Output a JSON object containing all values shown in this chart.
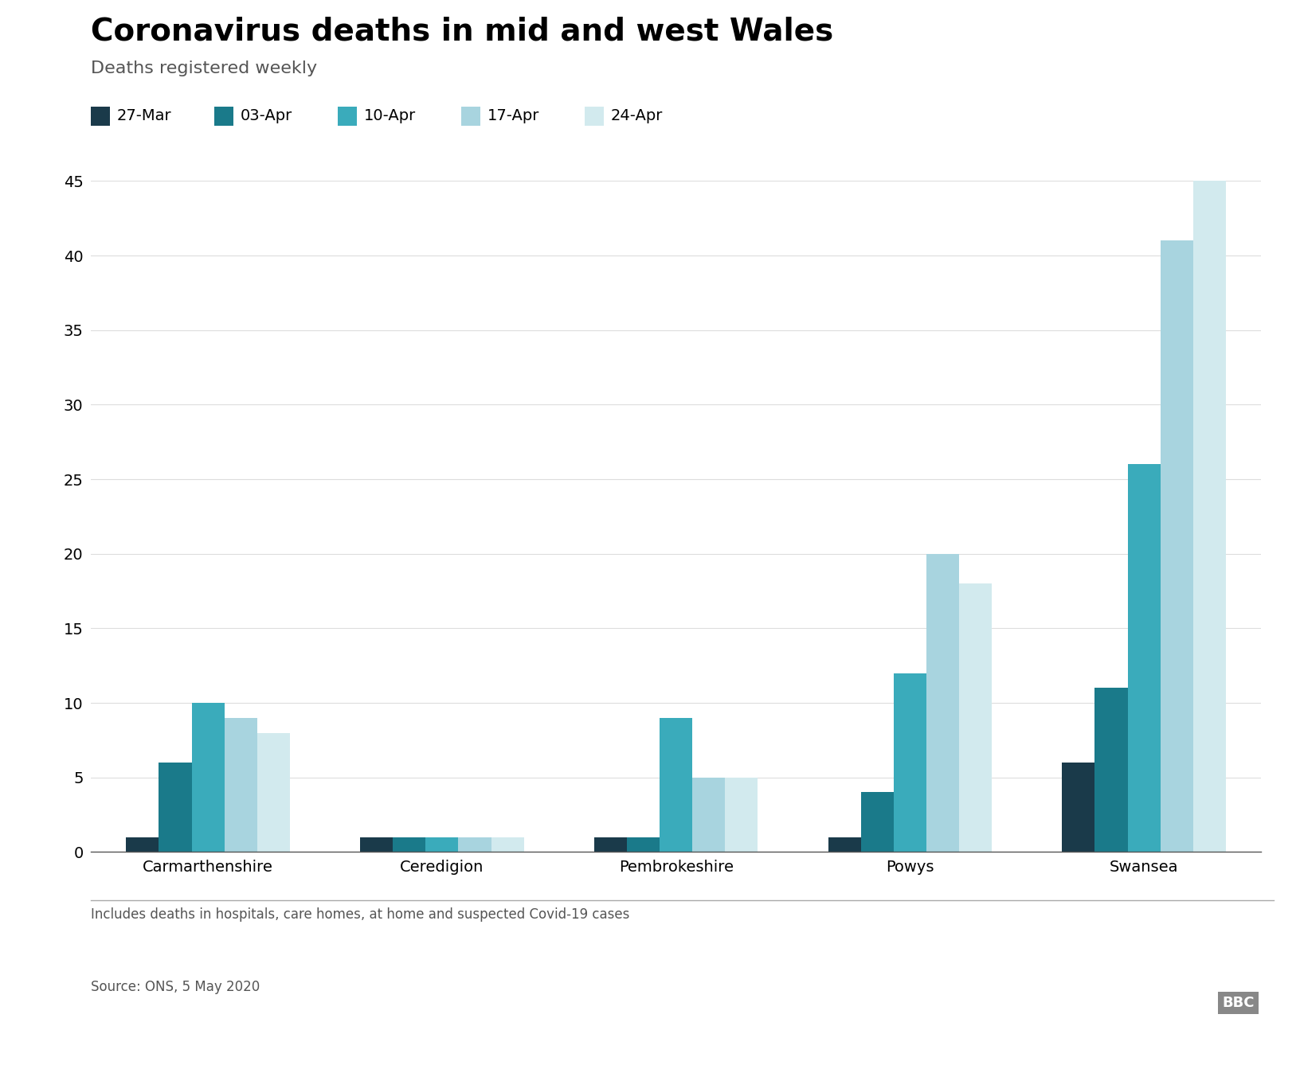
{
  "title": "Coronavirus deaths in mid and west Wales",
  "subtitle": "Deaths registered weekly",
  "categories": [
    "Carmarthenshire",
    "Ceredigion",
    "Pembrokeshire",
    "Powys",
    "Swansea"
  ],
  "series": [
    {
      "label": "27-Mar",
      "color": "#1a3a4a",
      "values": [
        1,
        1,
        1,
        1,
        6
      ]
    },
    {
      "label": "03-Apr",
      "color": "#1a7a8a",
      "values": [
        6,
        1,
        1,
        4,
        11
      ]
    },
    {
      "label": "10-Apr",
      "color": "#3aabbb",
      "values": [
        10,
        1,
        9,
        12,
        26
      ]
    },
    {
      "label": "17-Apr",
      "color": "#a8d4df",
      "values": [
        9,
        1,
        5,
        20,
        41
      ]
    },
    {
      "label": "24-Apr",
      "color": "#d2eaee",
      "values": [
        8,
        1,
        5,
        18,
        45
      ]
    }
  ],
  "ylim": [
    0,
    45
  ],
  "yticks": [
    0,
    5,
    10,
    15,
    20,
    25,
    30,
    35,
    40,
    45
  ],
  "footnote": "Includes deaths in hospitals, care homes, at home and suspected Covid-19 cases",
  "source": "Source: ONS, 5 May 2020",
  "bbc_logo": "BBC",
  "background_color": "#ffffff",
  "title_fontsize": 28,
  "subtitle_fontsize": 16,
  "legend_fontsize": 14,
  "tick_fontsize": 14,
  "category_fontsize": 14
}
